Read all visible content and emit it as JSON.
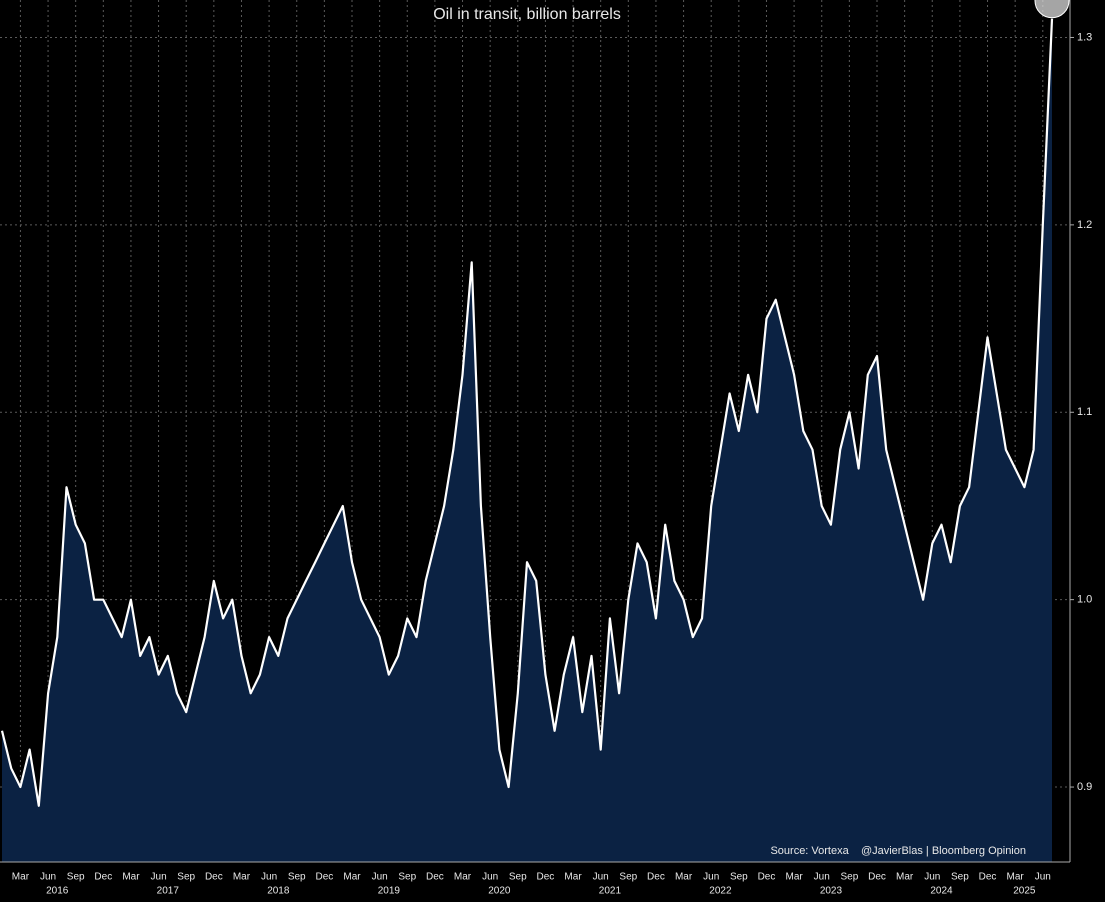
{
  "chart_data": {
    "type": "area-line",
    "title": "Oil in transit, billion barrels",
    "annotation": "Source: Vortexa    @JavierBlas | Bloomberg Opinion",
    "x": [
      "2016-01",
      "2016-02",
      "2016-03",
      "2016-04",
      "2016-05",
      "2016-06",
      "2016-07",
      "2016-08",
      "2016-09",
      "2016-10",
      "2016-11",
      "2016-12",
      "2017-01",
      "2017-02",
      "2017-03",
      "2017-04",
      "2017-05",
      "2017-06",
      "2017-07",
      "2017-08",
      "2017-09",
      "2017-10",
      "2017-11",
      "2017-12",
      "2018-01",
      "2018-02",
      "2018-03",
      "2018-04",
      "2018-05",
      "2018-06",
      "2018-07",
      "2018-08",
      "2018-09",
      "2018-10",
      "2018-11",
      "2018-12",
      "2019-01",
      "2019-02",
      "2019-03",
      "2019-04",
      "2019-05",
      "2019-06",
      "2019-07",
      "2019-08",
      "2019-09",
      "2019-10",
      "2019-11",
      "2019-12",
      "2020-01",
      "2020-02",
      "2020-03",
      "2020-04",
      "2020-05",
      "2020-06",
      "2020-07",
      "2020-08",
      "2020-09",
      "2020-10",
      "2020-11",
      "2020-12",
      "2021-01",
      "2021-02",
      "2021-03",
      "2021-04",
      "2021-05",
      "2021-06",
      "2021-07",
      "2021-08",
      "2021-09",
      "2021-10",
      "2021-11",
      "2021-12",
      "2022-01",
      "2022-02",
      "2022-03",
      "2022-04",
      "2022-05",
      "2022-06",
      "2022-07",
      "2022-08",
      "2022-09",
      "2022-10",
      "2022-11",
      "2022-12",
      "2023-01",
      "2023-02",
      "2023-03",
      "2023-04",
      "2023-05",
      "2023-06",
      "2023-07",
      "2023-08",
      "2023-09",
      "2023-10",
      "2023-11",
      "2023-12",
      "2024-01",
      "2024-02",
      "2024-03",
      "2024-04",
      "2024-05",
      "2024-06",
      "2024-07",
      "2024-08",
      "2024-09",
      "2024-10",
      "2024-11",
      "2024-12",
      "2025-01",
      "2025-02",
      "2025-03",
      "2025-04",
      "2025-05",
      "2025-06",
      "2025-07"
    ],
    "values": [
      0.93,
      0.91,
      0.9,
      0.92,
      0.89,
      0.95,
      0.98,
      1.06,
      1.04,
      1.03,
      1.0,
      1.0,
      0.99,
      0.98,
      1.0,
      0.97,
      0.98,
      0.96,
      0.97,
      0.95,
      0.94,
      0.96,
      0.98,
      1.01,
      0.99,
      1.0,
      0.97,
      0.95,
      0.96,
      0.98,
      0.97,
      0.99,
      1.0,
      1.01,
      1.02,
      1.03,
      1.04,
      1.05,
      1.02,
      1.0,
      0.99,
      0.98,
      0.96,
      0.97,
      0.99,
      0.98,
      1.01,
      1.03,
      1.05,
      1.08,
      1.12,
      1.18,
      1.05,
      0.98,
      0.92,
      0.9,
      0.95,
      1.02,
      1.01,
      0.96,
      0.93,
      0.96,
      0.98,
      0.94,
      0.97,
      0.92,
      0.99,
      0.95,
      1.0,
      1.03,
      1.02,
      0.99,
      1.04,
      1.01,
      1.0,
      0.98,
      0.99,
      1.05,
      1.08,
      1.11,
      1.09,
      1.12,
      1.1,
      1.15,
      1.16,
      1.14,
      1.12,
      1.09,
      1.08,
      1.05,
      1.04,
      1.08,
      1.1,
      1.07,
      1.12,
      1.13,
      1.08,
      1.06,
      1.04,
      1.02,
      1.0,
      1.03,
      1.04,
      1.02,
      1.05,
      1.06,
      1.1,
      1.14,
      1.11,
      1.08,
      1.07,
      1.06,
      1.08,
      1.2,
      1.31
    ],
    "line_color": "#ffffff",
    "fill_color": "#0b2243",
    "ylim": [
      0.86,
      1.32
    ],
    "yticks": [
      0.9,
      {
        "value": 1,
        "label": "1.0"
      },
      1.1,
      1.2,
      1.3
    ],
    "xticks": [
      {
        "value": "2016-03",
        "label": "Mar"
      },
      {
        "value": "2016-06",
        "label": "Jun"
      },
      {
        "value": "2016-09",
        "label": "Sep"
      },
      {
        "value": "2016-12",
        "label": "Dec"
      },
      {
        "value": "2017-03",
        "label": "Mar"
      },
      {
        "value": "2017-06",
        "label": "Jun"
      },
      {
        "value": "2017-09",
        "label": "Sep"
      },
      {
        "value": "2017-12",
        "label": "Dec"
      },
      {
        "value": "2018-03",
        "label": "Mar"
      },
      {
        "value": "2018-06",
        "label": "Jun"
      },
      {
        "value": "2018-09",
        "label": "Sep"
      },
      {
        "value": "2018-12",
        "label": "Dec"
      },
      {
        "value": "2019-03",
        "label": "Mar"
      },
      {
        "value": "2019-06",
        "label": "Jun"
      },
      {
        "value": "2019-09",
        "label": "Sep"
      },
      {
        "value": "2019-12",
        "label": "Dec"
      },
      {
        "value": "2020-03",
        "label": "Mar"
      },
      {
        "value": "2020-06",
        "label": "Jun"
      },
      {
        "value": "2020-09",
        "label": "Sep"
      },
      {
        "value": "2020-12",
        "label": "Dec"
      },
      {
        "value": "2021-03",
        "label": "Mar"
      },
      {
        "value": "2021-06",
        "label": "Jun"
      },
      {
        "value": "2021-09",
        "label": "Sep"
      },
      {
        "value": "2021-12",
        "label": "Dec"
      },
      {
        "value": "2022-03",
        "label": "Mar"
      },
      {
        "value": "2022-06",
        "label": "Jun"
      },
      {
        "value": "2022-09",
        "label": "Sep"
      },
      {
        "value": "2022-12",
        "label": "Dec"
      },
      {
        "value": "2023-03",
        "label": "Mar"
      },
      {
        "value": "2023-06",
        "label": "Jun"
      },
      {
        "value": "2023-09",
        "label": "Sep"
      },
      {
        "value": "2023-12",
        "label": "Dec"
      },
      {
        "value": "2024-03",
        "label": "Mar"
      },
      {
        "value": "2024-06",
        "label": "Jun"
      },
      {
        "value": "2024-09",
        "label": "Sep"
      },
      {
        "value": "2024-12",
        "label": "Dec"
      },
      {
        "value": "2025-03",
        "label": "Mar"
      },
      {
        "value": "2025-06",
        "label": "Jun"
      }
    ],
    "year_labels": [
      {
        "value": "2016-07",
        "label": "2016"
      },
      {
        "value": "2017-07",
        "label": "2017"
      },
      {
        "value": "2018-07",
        "label": "2018"
      },
      {
        "value": "2019-07",
        "label": "2019"
      },
      {
        "value": "2020-07",
        "label": "2020"
      },
      {
        "value": "2021-07",
        "label": "2021"
      },
      {
        "value": "2022-07",
        "label": "2022"
      },
      {
        "value": "2023-07",
        "label": "2023"
      },
      {
        "value": "2024-07",
        "label": "2024"
      },
      {
        "value": "2025-04",
        "label": "2025"
      }
    ],
    "grid": true
  }
}
